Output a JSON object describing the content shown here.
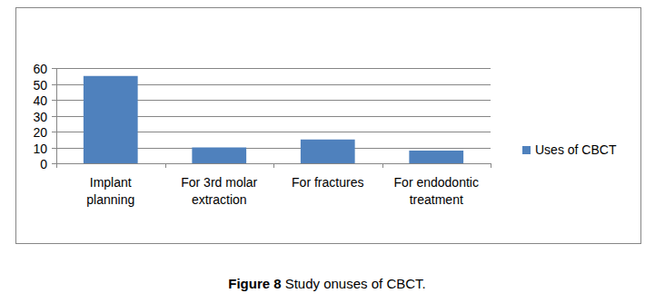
{
  "chart_data": {
    "type": "bar",
    "categories": [
      "Implant planning",
      "For 3rd molar extraction",
      "For fractures",
      "For endodontic treatment"
    ],
    "series": [
      {
        "name": "Uses of CBCT",
        "color": "#4f81bd",
        "values": [
          55,
          10,
          15,
          8
        ]
      }
    ],
    "ylim": [
      0,
      60
    ],
    "yticks": [
      0,
      10,
      20,
      30,
      40,
      50,
      60
    ],
    "grid": true,
    "legend": "right",
    "caption": {
      "label": "Figure 8",
      "text": "Study onuses of CBCT."
    }
  }
}
